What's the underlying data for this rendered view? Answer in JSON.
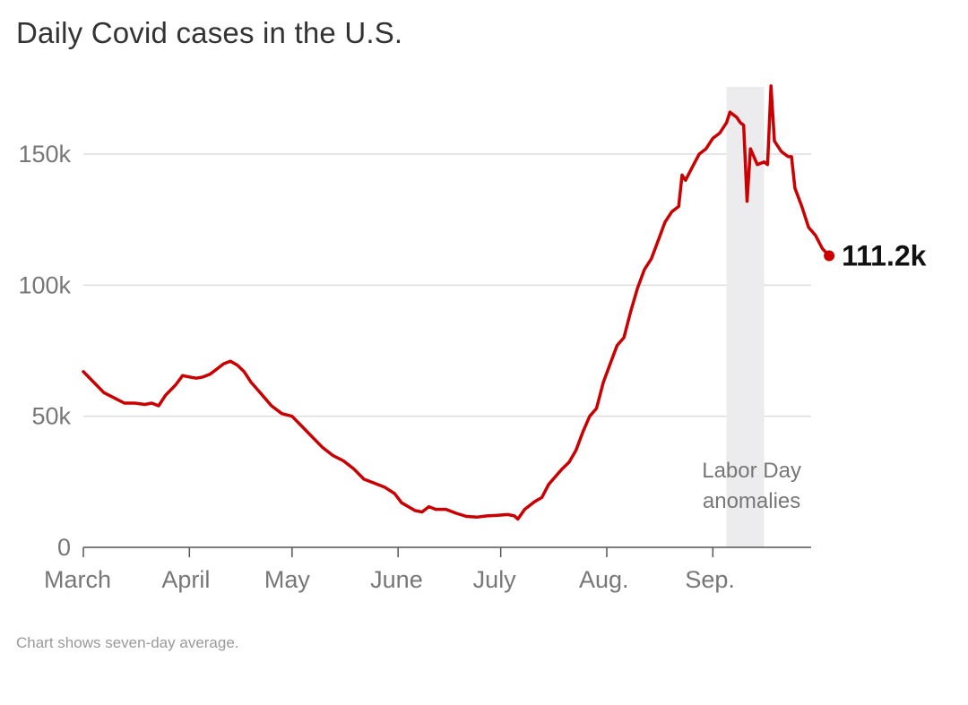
{
  "chart_data": {
    "type": "line",
    "title": "Daily Covid cases in the U.S.",
    "footnote": "Chart shows seven-day average.",
    "xlabel": "",
    "ylabel": "",
    "ylim": [
      0,
      150000
    ],
    "yticks": [
      {
        "value": 0,
        "label": "0"
      },
      {
        "value": 50000,
        "label": "50k"
      },
      {
        "value": 100000,
        "label": "100k"
      },
      {
        "value": 150000,
        "label": "150k"
      }
    ],
    "xticks": [
      {
        "day": 0,
        "label": "March"
      },
      {
        "day": 31,
        "label": "April"
      },
      {
        "day": 61,
        "label": "May"
      },
      {
        "day": 92,
        "label": "June"
      },
      {
        "day": 122,
        "label": "July"
      },
      {
        "day": 153,
        "label": "Aug."
      },
      {
        "day": 184,
        "label": "Sep."
      }
    ],
    "x_range_days": [
      0,
      214
    ],
    "highlight": {
      "start_day": 188,
      "end_day": 199,
      "label_lines": [
        "Labor Day",
        "anomalies"
      ]
    },
    "end_label": "111.2k",
    "series": [
      {
        "name": "Daily Covid cases (seven-day average)",
        "color": "#cc0000",
        "points": [
          [
            0,
            67000
          ],
          [
            3,
            63000
          ],
          [
            6,
            59000
          ],
          [
            9,
            57000
          ],
          [
            12,
            55000
          ],
          [
            15,
            55000
          ],
          [
            18,
            54500
          ],
          [
            20,
            55000
          ],
          [
            22,
            54000
          ],
          [
            24,
            58000
          ],
          [
            27,
            62000
          ],
          [
            29,
            65500
          ],
          [
            31,
            65000
          ],
          [
            33,
            64500
          ],
          [
            35,
            65000
          ],
          [
            37,
            66000
          ],
          [
            39,
            68000
          ],
          [
            41,
            70000
          ],
          [
            43,
            71000
          ],
          [
            45,
            69500
          ],
          [
            47,
            67000
          ],
          [
            49,
            63000
          ],
          [
            51,
            60000
          ],
          [
            53,
            57000
          ],
          [
            55,
            54000
          ],
          [
            58,
            51000
          ],
          [
            61,
            50000
          ],
          [
            64,
            46000
          ],
          [
            67,
            42000
          ],
          [
            70,
            38000
          ],
          [
            73,
            35000
          ],
          [
            76,
            33000
          ],
          [
            79,
            30000
          ],
          [
            82,
            26000
          ],
          [
            85,
            24500
          ],
          [
            88,
            23000
          ],
          [
            91,
            20500
          ],
          [
            93,
            17000
          ],
          [
            95,
            15500
          ],
          [
            97,
            14000
          ],
          [
            99,
            13500
          ],
          [
            101,
            15500
          ],
          [
            103,
            14500
          ],
          [
            106,
            14500
          ],
          [
            109,
            13000
          ],
          [
            112,
            11800
          ],
          [
            115,
            11500
          ],
          [
            118,
            12000
          ],
          [
            121,
            12200
          ],
          [
            124,
            12500
          ],
          [
            126,
            12000
          ],
          [
            127,
            10800
          ],
          [
            129,
            14500
          ],
          [
            132,
            17500
          ],
          [
            134,
            19000
          ],
          [
            136,
            24000
          ],
          [
            138,
            27000
          ],
          [
            140,
            30000
          ],
          [
            142,
            32500
          ],
          [
            144,
            37000
          ],
          [
            146,
            44000
          ],
          [
            148,
            50000
          ],
          [
            150,
            53000
          ],
          [
            152,
            63000
          ],
          [
            154,
            70000
          ],
          [
            156,
            77000
          ],
          [
            158,
            80000
          ],
          [
            160,
            90000
          ],
          [
            162,
            99000
          ],
          [
            164,
            106000
          ],
          [
            166,
            110000
          ],
          [
            168,
            117000
          ],
          [
            170,
            124000
          ],
          [
            172,
            128000
          ],
          [
            174,
            130000
          ],
          [
            175,
            142000
          ],
          [
            176,
            140000
          ],
          [
            178,
            145000
          ],
          [
            180,
            150000
          ],
          [
            182,
            152000
          ],
          [
            184,
            156000
          ],
          [
            186,
            158000
          ],
          [
            188,
            162000
          ],
          [
            189,
            166000
          ],
          [
            191,
            164000
          ],
          [
            192,
            162000
          ],
          [
            193,
            161000
          ],
          [
            194,
            132000
          ],
          [
            195,
            152000
          ],
          [
            197,
            146000
          ],
          [
            199,
            147000
          ],
          [
            200,
            146000
          ],
          [
            201,
            176000
          ],
          [
            202,
            155000
          ],
          [
            204,
            151000
          ],
          [
            206,
            149000
          ],
          [
            207,
            149000
          ],
          [
            208,
            137000
          ],
          [
            210,
            130000
          ],
          [
            212,
            122000
          ],
          [
            214,
            119000
          ],
          [
            216,
            114000
          ],
          [
            218,
            111200
          ]
        ]
      }
    ]
  }
}
